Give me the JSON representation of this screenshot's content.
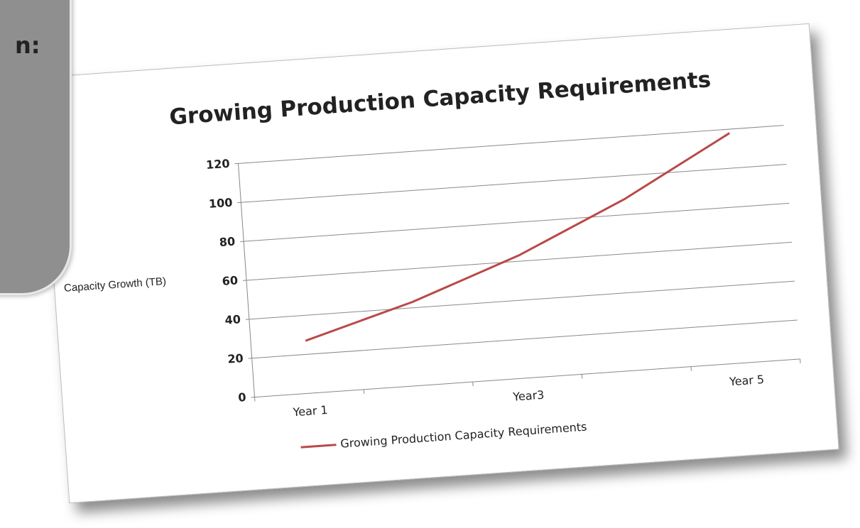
{
  "panel": {
    "text": "n:"
  },
  "chart_data": {
    "type": "line",
    "title": "Growing Production Capacity Requirements",
    "y_label": "Capacity Growth (TB)",
    "categories": [
      "Year 1",
      null,
      "Year3",
      null,
      "Year 5"
    ],
    "series": [
      {
        "name": "Growing Production Capacity Requirements",
        "color": "#b94a48",
        "values": [
          27,
          43,
          63,
          88,
          118
        ]
      }
    ],
    "ylim": [
      0,
      120
    ],
    "yticks": [
      0,
      20,
      40,
      60,
      80,
      100,
      120
    ],
    "grid": true,
    "legend": "bottom"
  }
}
